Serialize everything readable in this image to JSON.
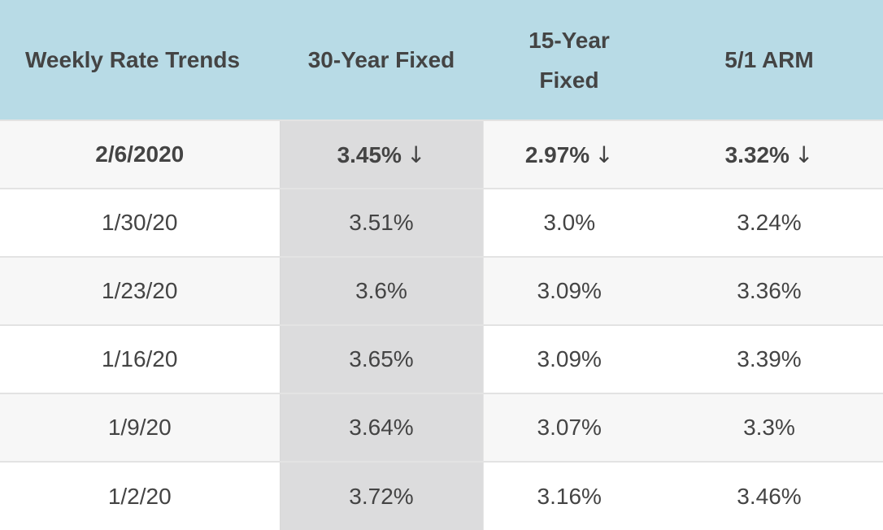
{
  "chart_data": {
    "type": "table",
    "columns": [
      "Weekly Rate Trends",
      "30-Year Fixed",
      "15-Year Fixed",
      "5/1 ARM"
    ],
    "rows": [
      {
        "date": "2/6/2020",
        "fixed30": "3.45%",
        "fixed15": "2.97%",
        "arm51": "3.32%",
        "trend": "↓"
      },
      {
        "date": "1/30/20",
        "fixed30": "3.51%",
        "fixed15": "3.0%",
        "arm51": "3.24%"
      },
      {
        "date": "1/23/20",
        "fixed30": "3.6%",
        "fixed15": "3.09%",
        "arm51": "3.36%"
      },
      {
        "date": "1/16/20",
        "fixed30": "3.65%",
        "fixed15": "3.09%",
        "arm51": "3.39%"
      },
      {
        "date": "1/9/20",
        "fixed30": "3.64%",
        "fixed15": "3.07%",
        "arm51": "3.3%"
      },
      {
        "date": "1/2/20",
        "fixed30": "3.72%",
        "fixed15": "3.16%",
        "arm51": "3.46%"
      }
    ],
    "colors": {
      "header_bg": "#b8dbe6",
      "highlight_column_bg": "#dcdcdd",
      "row_alt_bg": "#f7f7f7",
      "text": "#444444"
    }
  }
}
